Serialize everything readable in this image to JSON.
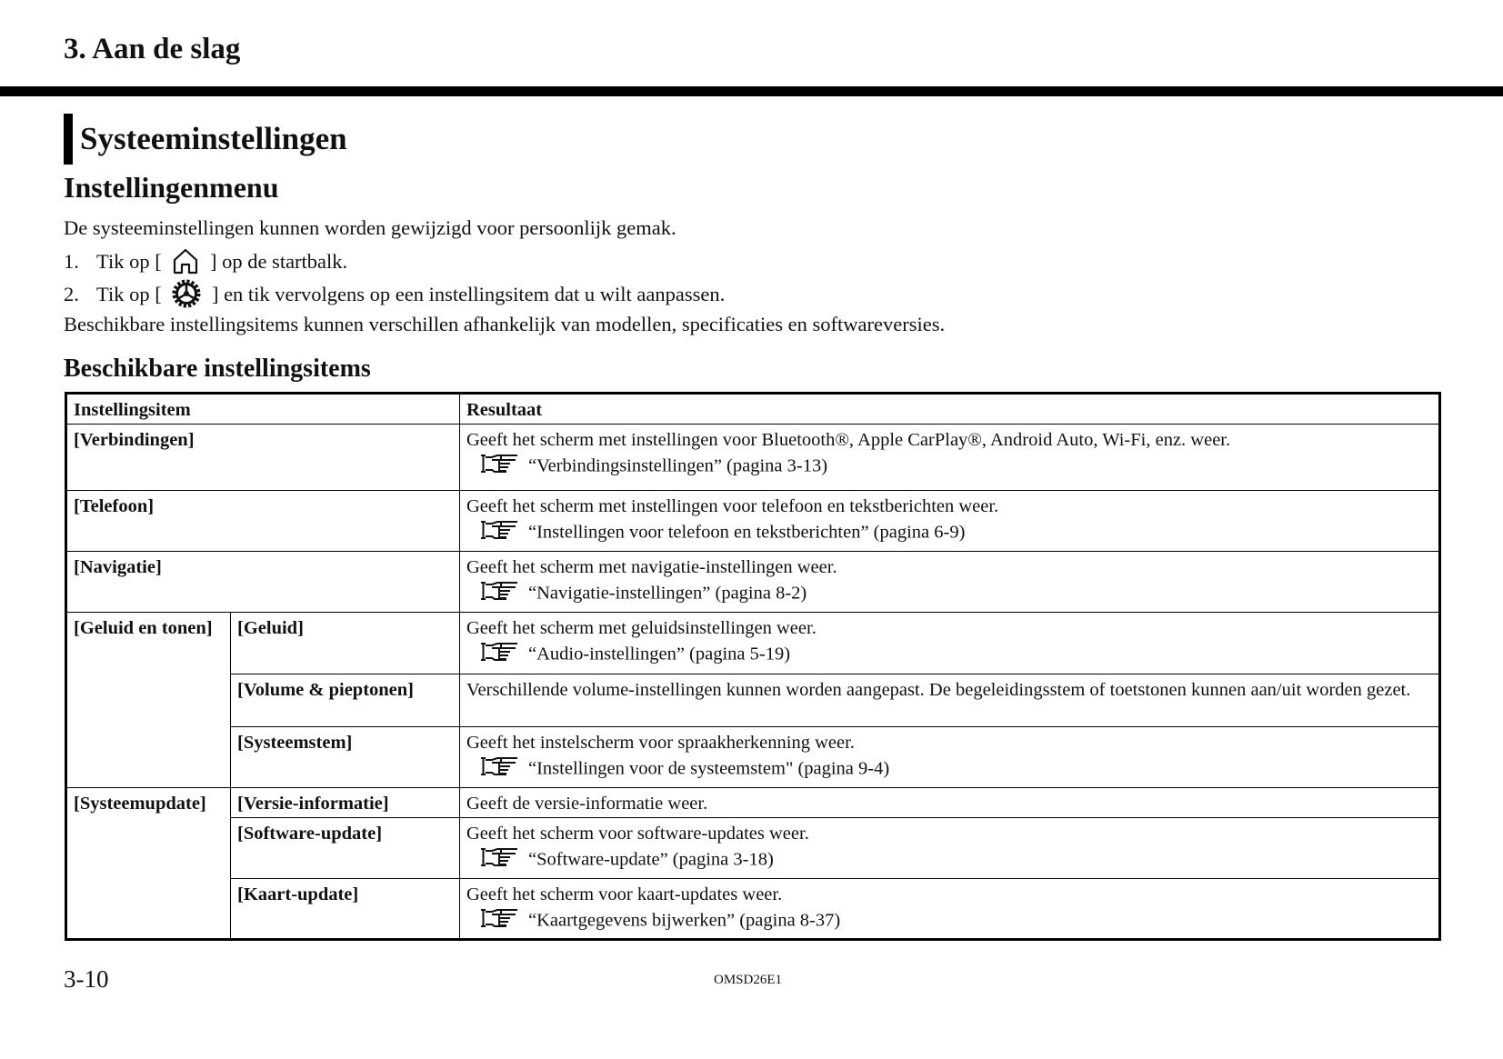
{
  "header": {
    "chapter": "3. Aan de slag"
  },
  "section_title": "Systeeminstellingen",
  "subtitle": "Instellingenmenu",
  "intro": "De systeeminstellingen kunnen worden gewijzigd voor persoonlijk gemak.",
  "steps": [
    {
      "num": "1.",
      "pre": "Tik op [",
      "icon": "home-icon",
      "post": "] op de startbalk."
    },
    {
      "num": "2.",
      "pre": "Tik op [",
      "icon": "gear-icon",
      "post": "] en tik vervolgens op een instellingsitem dat u wilt aanpassen."
    }
  ],
  "note": "Beschikbare instellingsitems kunnen verschillen afhankelijk van modellen, specificaties en softwareversies.",
  "table_title": "Beschikbare instellingsitems",
  "table": {
    "headers": [
      "Instellingsitem",
      "Resultaat"
    ],
    "rows": [
      {
        "item": "[Verbindingen]",
        "result": "Geeft het scherm met instellingen voor Bluetooth®, Apple CarPlay®, Android Auto, Wi-Fi, enz. weer.",
        "ref": "“Verbindingsinstellingen” (pagina 3-13)"
      },
      {
        "item": "[Telefoon]",
        "result": "Geeft het scherm met instellingen voor telefoon en tekstberichten weer.",
        "ref": "“Instellingen voor telefoon en tekstberichten” (pagina 6-9)"
      },
      {
        "item": "[Navigatie]",
        "result": "Geeft het scherm met navigatie-instellingen weer.",
        "ref": "“Navigatie-instellingen” (pagina 8-2)"
      },
      {
        "group": "[Geluid en tonen]",
        "item": "[Geluid]",
        "result": "Geeft het scherm met geluidsinstellingen weer.",
        "ref": "“Audio-instellingen” (pagina 5-19)"
      },
      {
        "item": "[Volume & pieptonen]",
        "result": "Verschillende volume-instellingen kunnen worden aangepast. De begeleidingsstem of toetstonen kunnen aan/uit worden gezet."
      },
      {
        "item": "[Systeemstem]",
        "result": "Geeft het instelscherm voor spraakherkenning weer.",
        "ref": "“Instellingen voor de systeemstem\" (pagina 9-4)"
      },
      {
        "group": "[Systeemupdate]",
        "item": "[Versie-informatie]",
        "result": "Geeft de versie-informatie weer."
      },
      {
        "item": "[Software-update]",
        "result": "Geeft het scherm voor software-updates weer.",
        "ref": "“Software-update” (pagina 3-18)"
      },
      {
        "item": "[Kaart-update]",
        "result": "Geeft het scherm voor kaart-updates weer.",
        "ref": "“Kaartgegevens bijwerken” (pagina 8-37)"
      }
    ]
  },
  "footer": {
    "page": "3-10",
    "code": "OMSD26E1"
  }
}
